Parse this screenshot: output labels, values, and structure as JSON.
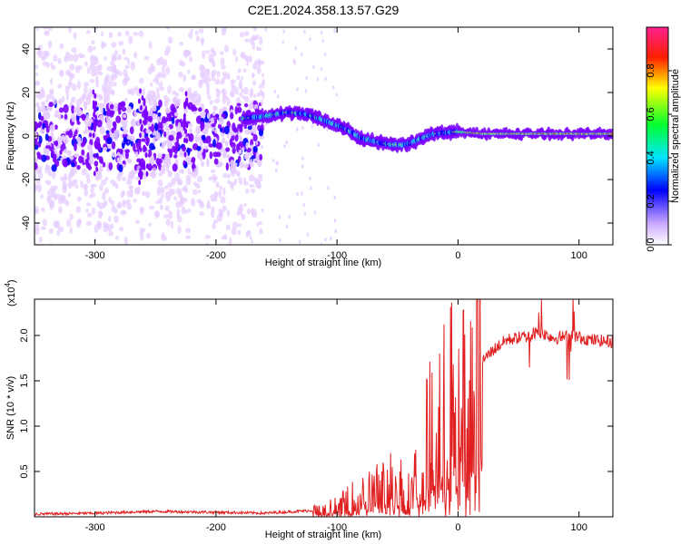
{
  "title": "C2E1.2024.358.13.57.G29",
  "chart_data": [
    {
      "type": "heatmap",
      "xlabel": "Height of straight line (km)",
      "ylabel": "Frequency (Hz)",
      "xlim": [
        -350,
        128
      ],
      "ylim": [
        -50,
        50
      ],
      "x_ticks": [
        -300,
        -200,
        -100,
        0,
        100
      ],
      "y_ticks": [
        -40,
        -20,
        0,
        20,
        40
      ],
      "colorbar": {
        "label": "Normalized spectral amplitude",
        "range": [
          0,
          1
        ],
        "ticks": [
          "0.0",
          "0.2",
          "0.4",
          "0.6",
          "0.8"
        ],
        "tick_values": [
          0.0,
          0.2,
          0.4,
          0.6,
          0.8
        ],
        "colors": [
          "#e6ccff",
          "#7a00ff",
          "#0000ff",
          "#00e0ff",
          "#00ff30",
          "#ffff00",
          "#ff3000",
          "#ff2080"
        ]
      },
      "ridge": {
        "x": [
          -178,
          -160,
          -140,
          -125,
          -110,
          -95,
          -80,
          -65,
          -55,
          -45,
          -38,
          -30,
          -20,
          -10,
          0,
          20,
          60,
          100,
          128
        ],
        "y": [
          8,
          9,
          11,
          10,
          7,
          4,
          -1,
          -3,
          -4,
          -4,
          -3,
          -1,
          1,
          1.5,
          2,
          1,
          1,
          1,
          1
        ]
      },
      "noise_region": [
        -350,
        -180
      ]
    },
    {
      "type": "line",
      "xlabel": "Height of straight line (km)",
      "ylabel": "SNR (10 * v/v)",
      "y_multiplier": "(x10",
      "y_multiplier_exp": "4",
      "y_multiplier_close": ")",
      "xlim": [
        -350,
        128
      ],
      "ylim": [
        0,
        2.4
      ],
      "x_ticks": [
        -300,
        -200,
        -100,
        0,
        100
      ],
      "y_ticks": [
        0.5,
        1.0,
        1.5,
        2.0
      ],
      "y_tick_labels": [
        "0.5",
        "1.0",
        "1.5",
        "2.0"
      ],
      "series": [
        {
          "color": "#e02020",
          "x": [
            -350,
            -300,
            -250,
            -200,
            -160,
            -120,
            -100,
            -80,
            -60,
            -50,
            -40,
            -30,
            -20,
            -10,
            0,
            10,
            20,
            30,
            40,
            60,
            65,
            80,
            95,
            110,
            128
          ],
          "y": [
            0.03,
            0.04,
            0.06,
            0.05,
            0.04,
            0.07,
            0.12,
            0.25,
            0.35,
            0.45,
            0.25,
            0.7,
            1.0,
            1.2,
            1.35,
            1.55,
            1.72,
            1.85,
            1.95,
            2.0,
            2.05,
            1.97,
            2.0,
            1.95,
            1.93
          ]
        }
      ]
    }
  ]
}
